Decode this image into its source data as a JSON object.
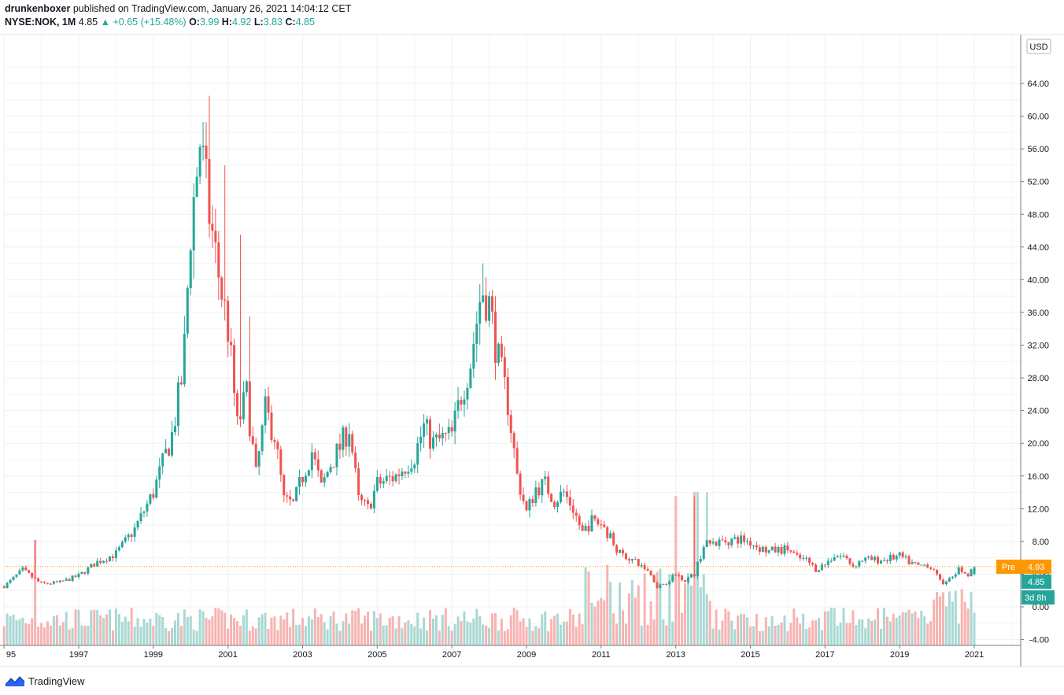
{
  "header": {
    "author": "drunkenboxer",
    "published": "published on TradingView.com, January 26, 2021 14:04:12 CET",
    "symbol": "NYSE:NOK, 1M",
    "last": "4.85",
    "change_arrow": "▲",
    "change": "+0.65 (+15.48%)",
    "o_label": "O:",
    "o_value": "3.99",
    "h_label": "H:",
    "h_value": "4.92",
    "l_label": "L:",
    "l_value": "3.83",
    "c_label": "C:",
    "c_value": "4.85"
  },
  "currency_button": "USD",
  "price_tags": {
    "pre_label": "Pre",
    "pre_value": "4.93",
    "last_value": "4.85",
    "countdown": "3d 8h"
  },
  "footer": {
    "brand": "TradingView",
    "logo_icon": "tradingview-logo-icon"
  },
  "colors": {
    "up": "#26a69a",
    "down": "#ef5350",
    "pre": "#ff9800",
    "vol_up": "#a9d8d3",
    "vol_down": "#f7b3b1"
  },
  "chart_data": {
    "type": "candlestick",
    "interval": "1M",
    "y_ticks": [
      "64.00",
      "60.00",
      "56.00",
      "52.00",
      "48.00",
      "44.00",
      "40.00",
      "36.00",
      "32.00",
      "28.00",
      "24.00",
      "20.00",
      "16.00",
      "12.00",
      "8.00",
      "4.00",
      "0.00",
      "-4.00"
    ],
    "x_ticks": [
      "95",
      "1997",
      "1999",
      "2001",
      "2003",
      "2005",
      "2007",
      "2009",
      "2011",
      "2013",
      "2015",
      "2017",
      "2019",
      "2021"
    ],
    "ylim": [
      -4,
      70
    ],
    "grid": true,
    "price_anchors": [
      [
        1995.0,
        2.5
      ],
      [
        1995.5,
        4.5
      ],
      [
        1996.0,
        2.8
      ],
      [
        1996.5,
        3.0
      ],
      [
        1997.0,
        3.8
      ],
      [
        1997.5,
        5.5
      ],
      [
        1998.0,
        6.5
      ],
      [
        1998.5,
        9.5
      ],
      [
        1999.0,
        14.0
      ],
      [
        1999.5,
        21.0
      ],
      [
        1999.8,
        29.0
      ],
      [
        2000.0,
        46.0
      ],
      [
        2000.25,
        57.0
      ],
      [
        2000.5,
        48.0
      ],
      [
        2000.7,
        42.0
      ],
      [
        2001.0,
        34.0
      ],
      [
        2001.25,
        22.0
      ],
      [
        2001.5,
        26.0
      ],
      [
        2001.75,
        16.0
      ],
      [
        2002.0,
        24.0
      ],
      [
        2002.25,
        21.0
      ],
      [
        2002.5,
        13.0
      ],
      [
        2002.75,
        12.5
      ],
      [
        2003.0,
        16.0
      ],
      [
        2003.25,
        19.0
      ],
      [
        2003.5,
        14.5
      ],
      [
        2003.75,
        17.5
      ],
      [
        2004.0,
        19.5
      ],
      [
        2004.25,
        22.0
      ],
      [
        2004.5,
        13.0
      ],
      [
        2004.75,
        12.0
      ],
      [
        2005.0,
        15.0
      ],
      [
        2005.5,
        16.0
      ],
      [
        2006.0,
        18.5
      ],
      [
        2006.25,
        22.0
      ],
      [
        2006.5,
        20.0
      ],
      [
        2007.0,
        21.0
      ],
      [
        2007.25,
        26.0
      ],
      [
        2007.5,
        30.0
      ],
      [
        2007.8,
        39.0
      ],
      [
        2008.0,
        37.0
      ],
      [
        2008.25,
        30.0
      ],
      [
        2008.5,
        25.0
      ],
      [
        2008.75,
        16.0
      ],
      [
        2009.0,
        11.5
      ],
      [
        2009.25,
        14.5
      ],
      [
        2009.5,
        15.0
      ],
      [
        2009.75,
        13.0
      ],
      [
        2010.0,
        14.0
      ],
      [
        2010.25,
        12.0
      ],
      [
        2010.5,
        9.0
      ],
      [
        2010.75,
        10.5
      ],
      [
        2011.0,
        10.2
      ],
      [
        2011.25,
        8.5
      ],
      [
        2011.5,
        6.5
      ],
      [
        2011.75,
        6.0
      ],
      [
        2012.0,
        5.2
      ],
      [
        2012.25,
        4.5
      ],
      [
        2012.5,
        2.5
      ],
      [
        2012.75,
        3.0
      ],
      [
        2013.0,
        4.0
      ],
      [
        2013.25,
        3.3
      ],
      [
        2013.5,
        4.0
      ],
      [
        2013.75,
        7.5
      ],
      [
        2014.0,
        7.8
      ],
      [
        2014.5,
        8.2
      ],
      [
        2014.75,
        8.3
      ],
      [
        2015.0,
        7.9
      ],
      [
        2015.25,
        7.2
      ],
      [
        2015.5,
        6.8
      ],
      [
        2016.0,
        7.1
      ],
      [
        2016.25,
        6.0
      ],
      [
        2016.5,
        5.7
      ],
      [
        2016.75,
        4.6
      ],
      [
        2017.0,
        5.2
      ],
      [
        2017.25,
        6.3
      ],
      [
        2017.5,
        6.2
      ],
      [
        2017.75,
        5.0
      ],
      [
        2018.0,
        5.8
      ],
      [
        2018.5,
        5.7
      ],
      [
        2019.0,
        6.2
      ],
      [
        2019.25,
        5.5
      ],
      [
        2019.5,
        5.0
      ],
      [
        2019.75,
        5.2
      ],
      [
        2020.0,
        3.8
      ],
      [
        2020.2,
        2.8
      ],
      [
        2020.4,
        3.6
      ],
      [
        2020.6,
        4.6
      ],
      [
        2020.8,
        3.9
      ],
      [
        2021.0,
        4.85
      ]
    ],
    "notable_highs": [
      [
        2000.3,
        58.5
      ],
      [
        2000.5,
        62.5
      ],
      [
        2000.9,
        54.0
      ],
      [
        2001.3,
        45.5
      ],
      [
        2001.6,
        35.5
      ],
      [
        2007.85,
        42.0
      ],
      [
        2013.5,
        13.5
      ],
      [
        2013.8,
        14.0
      ],
      [
        1995.8,
        8.2
      ]
    ],
    "pre_market": 4.93,
    "last_close": 4.85
  }
}
